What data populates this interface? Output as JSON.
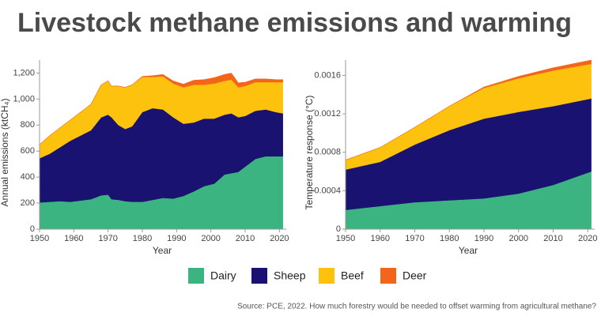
{
  "title": "Livestock methane emissions and warming",
  "source": "Source: PCE, 2022. How much forestry would be needed to offset warming from agricultural methane?",
  "chart_data": [
    {
      "type": "stacked_area",
      "xlabel": "Year",
      "ylabel": "Annual emissions (ktCH₄)",
      "x": [
        1950,
        1953,
        1956,
        1959,
        1962,
        1965,
        1968,
        1970,
        1971,
        1973,
        1975,
        1977,
        1980,
        1983,
        1986,
        1989,
        1992,
        1995,
        1998,
        2001,
        2004,
        2006,
        2008,
        2010,
        2013,
        2016,
        2019,
        2021
      ],
      "series": [
        {
          "name": "Dairy",
          "color": "#3cb482",
          "values": [
            205,
            210,
            215,
            210,
            220,
            230,
            260,
            265,
            230,
            225,
            215,
            210,
            210,
            225,
            240,
            235,
            255,
            290,
            330,
            350,
            420,
            430,
            440,
            480,
            540,
            560,
            560,
            560
          ]
        },
        {
          "name": "Sheep",
          "color": "#1a1270",
          "values": [
            340,
            370,
            415,
            470,
            500,
            530,
            600,
            615,
            630,
            575,
            555,
            580,
            690,
            705,
            680,
            625,
            555,
            530,
            520,
            500,
            460,
            460,
            420,
            390,
            370,
            360,
            340,
            330
          ]
        },
        {
          "name": "Beef",
          "color": "#fdc20e",
          "values": [
            105,
            140,
            150,
            160,
            180,
            200,
            250,
            260,
            240,
            300,
            320,
            320,
            270,
            240,
            255,
            260,
            280,
            290,
            260,
            270,
            260,
            260,
            230,
            230,
            220,
            210,
            230,
            240
          ]
        },
        {
          "name": "Deer",
          "color": "#f4651c",
          "values": [
            0,
            0,
            0,
            0,
            0,
            0,
            0,
            0,
            0,
            0,
            0,
            0,
            5,
            10,
            15,
            20,
            25,
            35,
            40,
            45,
            50,
            50,
            35,
            30,
            25,
            25,
            20,
            20
          ]
        }
      ],
      "xlim": [
        1950,
        2022
      ],
      "xticks": [
        1950,
        1960,
        1970,
        1980,
        1990,
        2000,
        2010,
        2020
      ],
      "ylim": [
        0,
        1300
      ],
      "yticks": [
        0,
        200,
        400,
        600,
        800,
        {
          "value": 1000,
          "label": "1,000"
        },
        {
          "value": 1200,
          "label": "1,200"
        }
      ]
    },
    {
      "type": "stacked_area",
      "xlabel": "Year",
      "ylabel": "Temperature response (°C)",
      "x": [
        1950,
        1960,
        1970,
        1980,
        1990,
        2000,
        2010,
        2021
      ],
      "series": [
        {
          "color": "#3cb482",
          "values": [
            0.0002,
            0.00024,
            0.00028,
            0.0003,
            0.00032,
            0.00037,
            0.00046,
            0.0006
          ]
        },
        {
          "color": "#1a1270",
          "values": [
            0.00042,
            0.00046,
            0.0006,
            0.00073,
            0.00083,
            0.00085,
            0.00082,
            0.00076
          ]
        },
        {
          "color": "#fdc20e",
          "values": [
            0.0001,
            0.00015,
            0.00018,
            0.00025,
            0.00032,
            0.00035,
            0.00037,
            0.00036
          ]
        },
        {
          "color": "#f4651c",
          "values": [
            0,
            0,
            0,
            0,
            1e-05,
            2e-05,
            3e-05,
            4e-05
          ]
        }
      ],
      "xlim": [
        1950,
        2022
      ],
      "xticks": [
        1950,
        1960,
        1970,
        1980,
        1990,
        2000,
        2010,
        2020
      ],
      "ylim": [
        0,
        0.00176
      ],
      "yticks": [
        0,
        0.0004,
        0.0008,
        0.0012,
        0.0016
      ]
    }
  ]
}
